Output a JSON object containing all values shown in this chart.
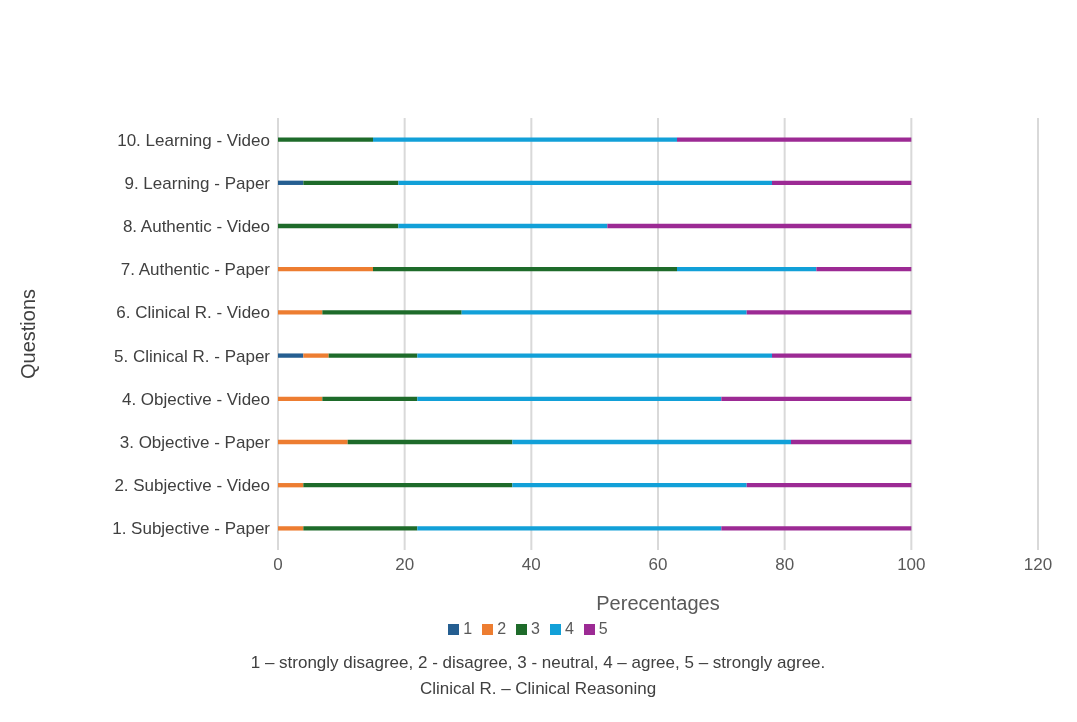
{
  "chart_data": {
    "type": "bar",
    "orientation": "horizontal",
    "stacked": true,
    "categories": [
      "10. Learning - Video",
      "9. Learning - Paper",
      "8. Authentic - Video",
      "7. Authentic - Paper",
      "6. Clinical R. - Video",
      "5. Clinical R. - Paper",
      "4. Objective - Video",
      "3. Objective - Paper",
      "2. Subjective - Video",
      "1. Subjective - Paper"
    ],
    "series": [
      {
        "name": "1",
        "color": "#255e91",
        "values": [
          0,
          4,
          0,
          0,
          0,
          4,
          0,
          0,
          0,
          0
        ]
      },
      {
        "name": "2",
        "color": "#ed7d31",
        "values": [
          0,
          0,
          0,
          15,
          7,
          4,
          7,
          11,
          4,
          4
        ]
      },
      {
        "name": "3",
        "color": "#1e6b2a",
        "values": [
          15,
          15,
          19,
          48,
          22,
          14,
          15,
          26,
          33,
          18
        ]
      },
      {
        "name": "4",
        "color": "#12a0d8",
        "values": [
          48,
          59,
          33,
          22,
          45,
          56,
          48,
          44,
          37,
          48
        ]
      },
      {
        "name": "5",
        "color": "#9c2a94",
        "values": [
          37,
          22,
          48,
          15,
          26,
          22,
          30,
          19,
          26,
          30
        ]
      }
    ],
    "xlabel": "Perecentages",
    "ylabel": "Questions",
    "xlim": [
      0,
      120
    ],
    "xticks": [
      0,
      20,
      40,
      60,
      80,
      100,
      120
    ],
    "grid": "x",
    "legend": "bottom",
    "annotations": [
      "1 – strongly disagree, 2 - disagree, 3 - neutral, 4 – agree, 5 – strongly agree.",
      "Clinical R. – Clinical Reasoning"
    ]
  }
}
